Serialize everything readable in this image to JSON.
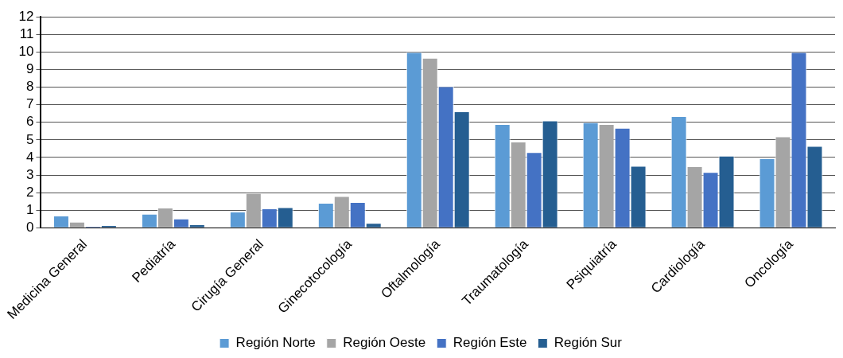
{
  "chart_data": {
    "type": "bar",
    "categories": [
      "Medicina General",
      "Pediatría",
      "Cirugía General",
      "Ginecotocología",
      "Oftalmología",
      "Traumatología",
      "Psiquiatría",
      "Cardiología",
      "Oncología"
    ],
    "series": [
      {
        "name": "Región Norte",
        "color": "#5b9bd5",
        "values": [
          0.7,
          0.8,
          0.92,
          1.42,
          10,
          5.9,
          6.0,
          6.35,
          3.95
        ]
      },
      {
        "name": "Región Oeste",
        "color": "#a5a5a5",
        "values": [
          0.35,
          1.15,
          1.97,
          1.8,
          9.67,
          4.9,
          5.9,
          3.5,
          5.2
        ]
      },
      {
        "name": "Región Este",
        "color": "#4472c4",
        "values": [
          0.1,
          0.52,
          1.1,
          1.47,
          8.05,
          4.3,
          5.68,
          3.17,
          10
        ]
      },
      {
        "name": "Región Sur",
        "color": "#255e91",
        "values": [
          0.15,
          0.2,
          1.17,
          0.28,
          6.62,
          6.1,
          3.52,
          4.1,
          4.65
        ]
      }
    ],
    "ylim": [
      0,
      12
    ],
    "yticks": [
      0,
      1,
      2,
      3,
      4,
      5,
      6,
      7,
      8,
      9,
      10,
      11,
      12
    ],
    "grid": "y",
    "legend": "bottom"
  }
}
